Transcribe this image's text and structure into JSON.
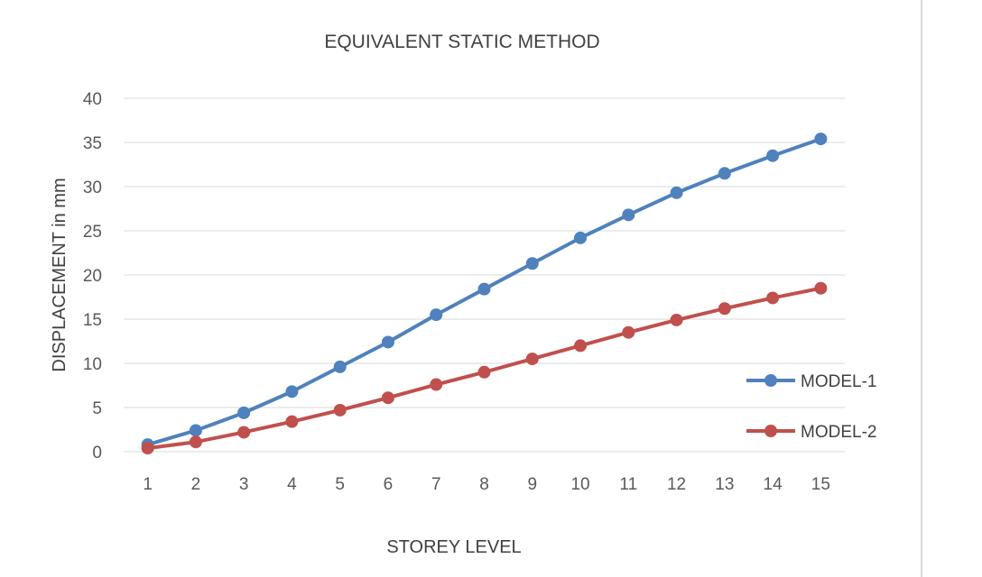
{
  "chart_data": {
    "type": "line",
    "title": "EQUIVALENT STATIC METHOD",
    "xlabel": "STOREY LEVEL",
    "ylabel": "DISPLACEMENT in mm",
    "ylim": [
      0,
      40
    ],
    "yticks": [
      0,
      5,
      10,
      15,
      20,
      25,
      30,
      35,
      40
    ],
    "categories": [
      "1",
      "2",
      "3",
      "4",
      "5",
      "6",
      "7",
      "8",
      "9",
      "10",
      "11",
      "12",
      "13",
      "14",
      "15"
    ],
    "grid": true,
    "legend_position": "right",
    "series": [
      {
        "name": "MODEL-1",
        "color": "#4f81bd",
        "values": [
          0.8,
          2.4,
          4.4,
          6.8,
          9.6,
          12.4,
          15.5,
          18.4,
          21.3,
          24.2,
          26.8,
          29.3,
          31.5,
          33.5,
          35.4
        ]
      },
      {
        "name": "MODEL-2",
        "color": "#c0504d",
        "values": [
          0.4,
          1.1,
          2.2,
          3.4,
          4.7,
          6.1,
          7.6,
          9.0,
          10.5,
          12.0,
          13.5,
          14.9,
          16.2,
          17.4,
          18.5
        ]
      }
    ]
  }
}
